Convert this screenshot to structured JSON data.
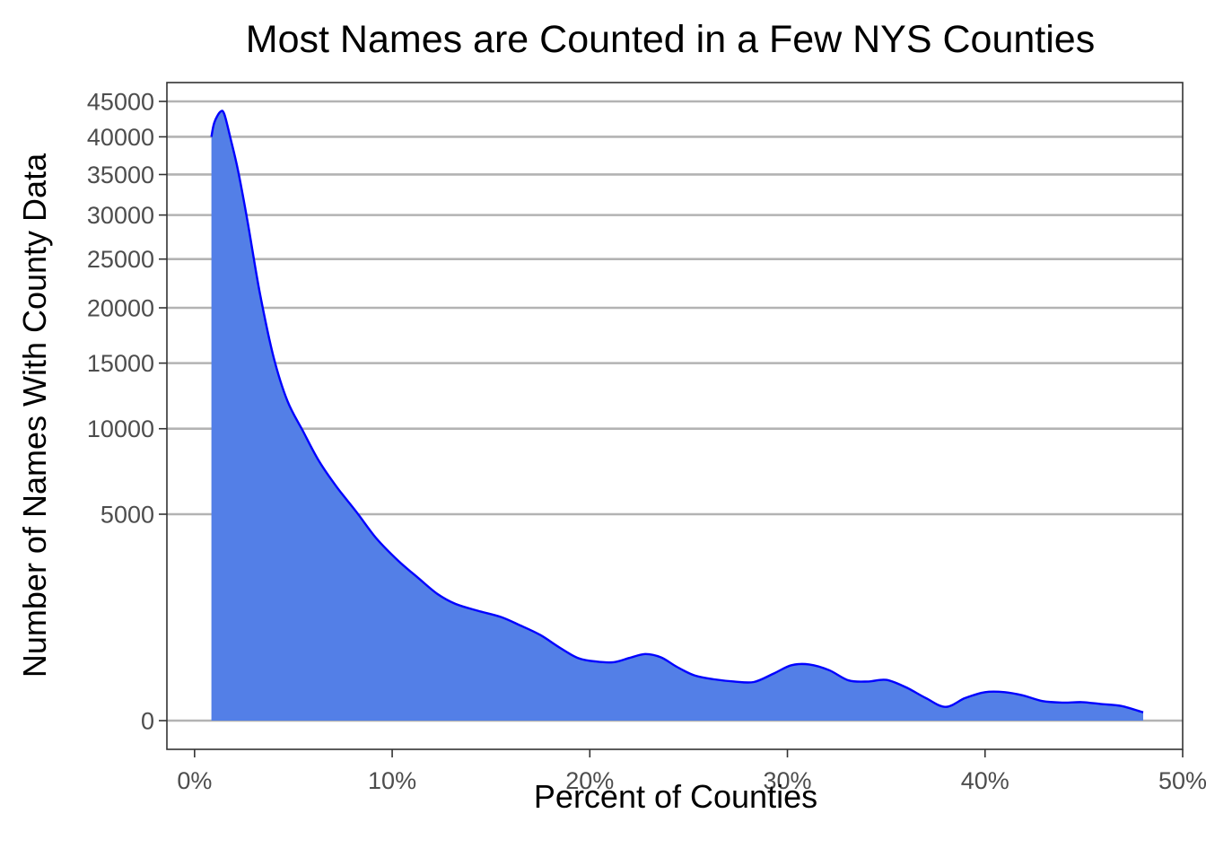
{
  "chart_data": {
    "type": "area",
    "title": "Most Names are Counted in a Few NYS Counties",
    "xlabel": "Percent of Counties",
    "ylabel": "Number of Names With County Data",
    "x_ticks": [
      "0%",
      "10%",
      "20%",
      "30%",
      "40%",
      "50%"
    ],
    "x_tick_values": [
      0,
      10,
      20,
      30,
      40,
      50
    ],
    "y_ticks": [
      "0",
      "5000",
      "10000",
      "15000",
      "20000",
      "25000",
      "30000",
      "35000",
      "40000",
      "45000"
    ],
    "y_tick_values": [
      0,
      5000,
      10000,
      15000,
      20000,
      25000,
      30000,
      35000,
      40000,
      45000
    ],
    "y_scale": "sqrt",
    "xlim": [
      -1.4,
      50
    ],
    "ylim": [
      0,
      45000
    ],
    "grid": "horizontal major lines",
    "colors": {
      "fill": "#537fe7",
      "line": "#0000ff",
      "grid": "#b3b3b3"
    },
    "series": [
      {
        "x": [
          0.85,
          1.0,
          1.3,
          1.5,
          1.8,
          2.2,
          2.7,
          3.3,
          4.0,
          4.7,
          5.5,
          6.3,
          7.2,
          8.2,
          9.2,
          10.3,
          11.3,
          12.3,
          13.2,
          14.3,
          15.5,
          16.5,
          17.5,
          18.5,
          19.4,
          20.3,
          21.2,
          22.0,
          22.8,
          23.6,
          24.4,
          25.3,
          26.3,
          27.3,
          28.3,
          29.3,
          30.2,
          31.1,
          32.1,
          33.1,
          34.1,
          35.0,
          36.0,
          37.0,
          38.0,
          39.0,
          40.0,
          41.0,
          41.9,
          42.9,
          43.9,
          44.9,
          45.9,
          46.9,
          48.0
        ],
        "y": [
          40000,
          42000,
          43500,
          43200,
          40000,
          35500,
          29000,
          21500,
          15500,
          12000,
          9800,
          7900,
          6400,
          5100,
          3900,
          3000,
          2400,
          1880,
          1600,
          1420,
          1260,
          1060,
          860,
          620,
          460,
          410,
          400,
          460,
          520,
          470,
          340,
          240,
          200,
          180,
          175,
          260,
          360,
          370,
          300,
          190,
          180,
          195,
          130,
          60,
          22,
          60,
          95,
          95,
          75,
          45,
          38,
          40,
          32,
          25,
          8
        ]
      }
    ]
  }
}
